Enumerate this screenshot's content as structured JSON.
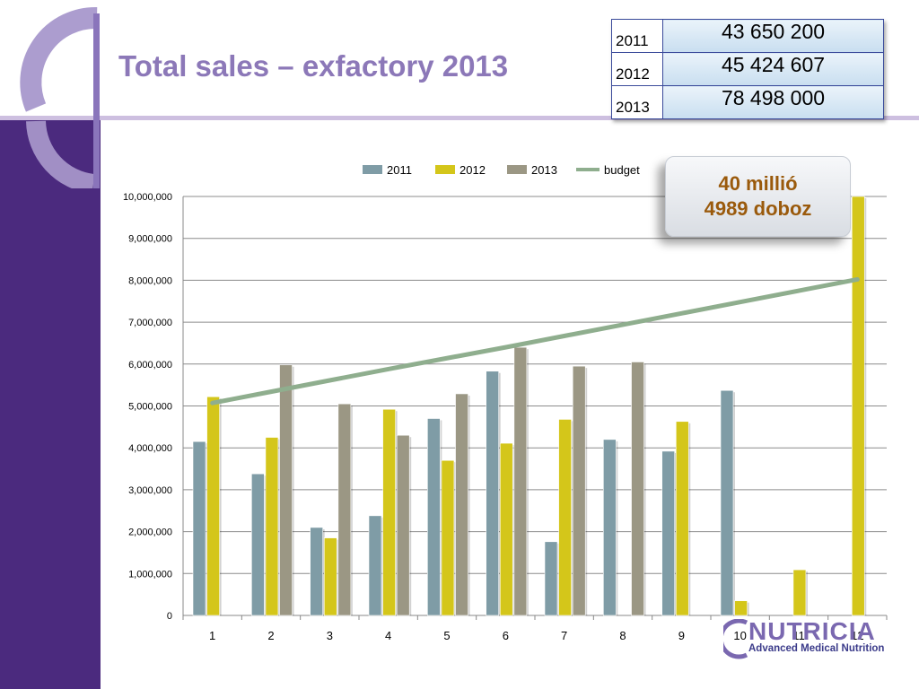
{
  "title": "Total sales – exfactory 2013",
  "summary_table": [
    {
      "year": "2011",
      "value": "43 650 200"
    },
    {
      "year": "2012",
      "value": "45 424 607"
    },
    {
      "year": "2013",
      "value": "78 498 000"
    }
  ],
  "callout": {
    "line1": "40 millió",
    "line2": "4989 doboz"
  },
  "logo": {
    "name": "NUTRICIA",
    "tagline": "Advanced Medical Nutrition"
  },
  "colors": {
    "band": "#4b2a7e",
    "title": "#8c78b8",
    "s2011": "#7f9ca6",
    "s2012": "#d4c61a",
    "s2013": "#9b9784",
    "budget": "#8fae8e"
  },
  "chart_data": {
    "type": "bar",
    "categories": [
      "1",
      "2",
      "3",
      "4",
      "5",
      "6",
      "7",
      "8",
      "9",
      "10",
      "11",
      "12"
    ],
    "series": [
      {
        "name": "2011",
        "type": "bar",
        "values": [
          4150000,
          3380000,
          2100000,
          2380000,
          4700000,
          5830000,
          1760000,
          4200000,
          3920000,
          5370000,
          null,
          null
        ]
      },
      {
        "name": "2012",
        "type": "bar",
        "values": [
          5220000,
          4250000,
          1850000,
          4920000,
          3700000,
          4110000,
          4680000,
          null,
          4630000,
          350000,
          1090000,
          10000000
        ]
      },
      {
        "name": "2013",
        "type": "bar",
        "values": [
          null,
          5980000,
          5050000,
          4300000,
          5290000,
          6400000,
          5950000,
          6050000,
          null,
          null,
          null,
          null
        ]
      },
      {
        "name": "budget",
        "type": "line",
        "values": [
          5070000,
          5340000,
          5610000,
          5880000,
          6140000,
          6400000,
          6670000,
          6940000,
          7210000,
          7480000,
          7750000,
          8020000
        ]
      }
    ],
    "y_ticks": [
      "0",
      "1,000,000",
      "2,000,000",
      "3,000,000",
      "4,000,000",
      "5,000,000",
      "6,000,000",
      "7,000,000",
      "8,000,000",
      "9,000,000",
      "10,000,000"
    ],
    "ylim": [
      0,
      10000000
    ],
    "grid": true,
    "legend": "top"
  }
}
